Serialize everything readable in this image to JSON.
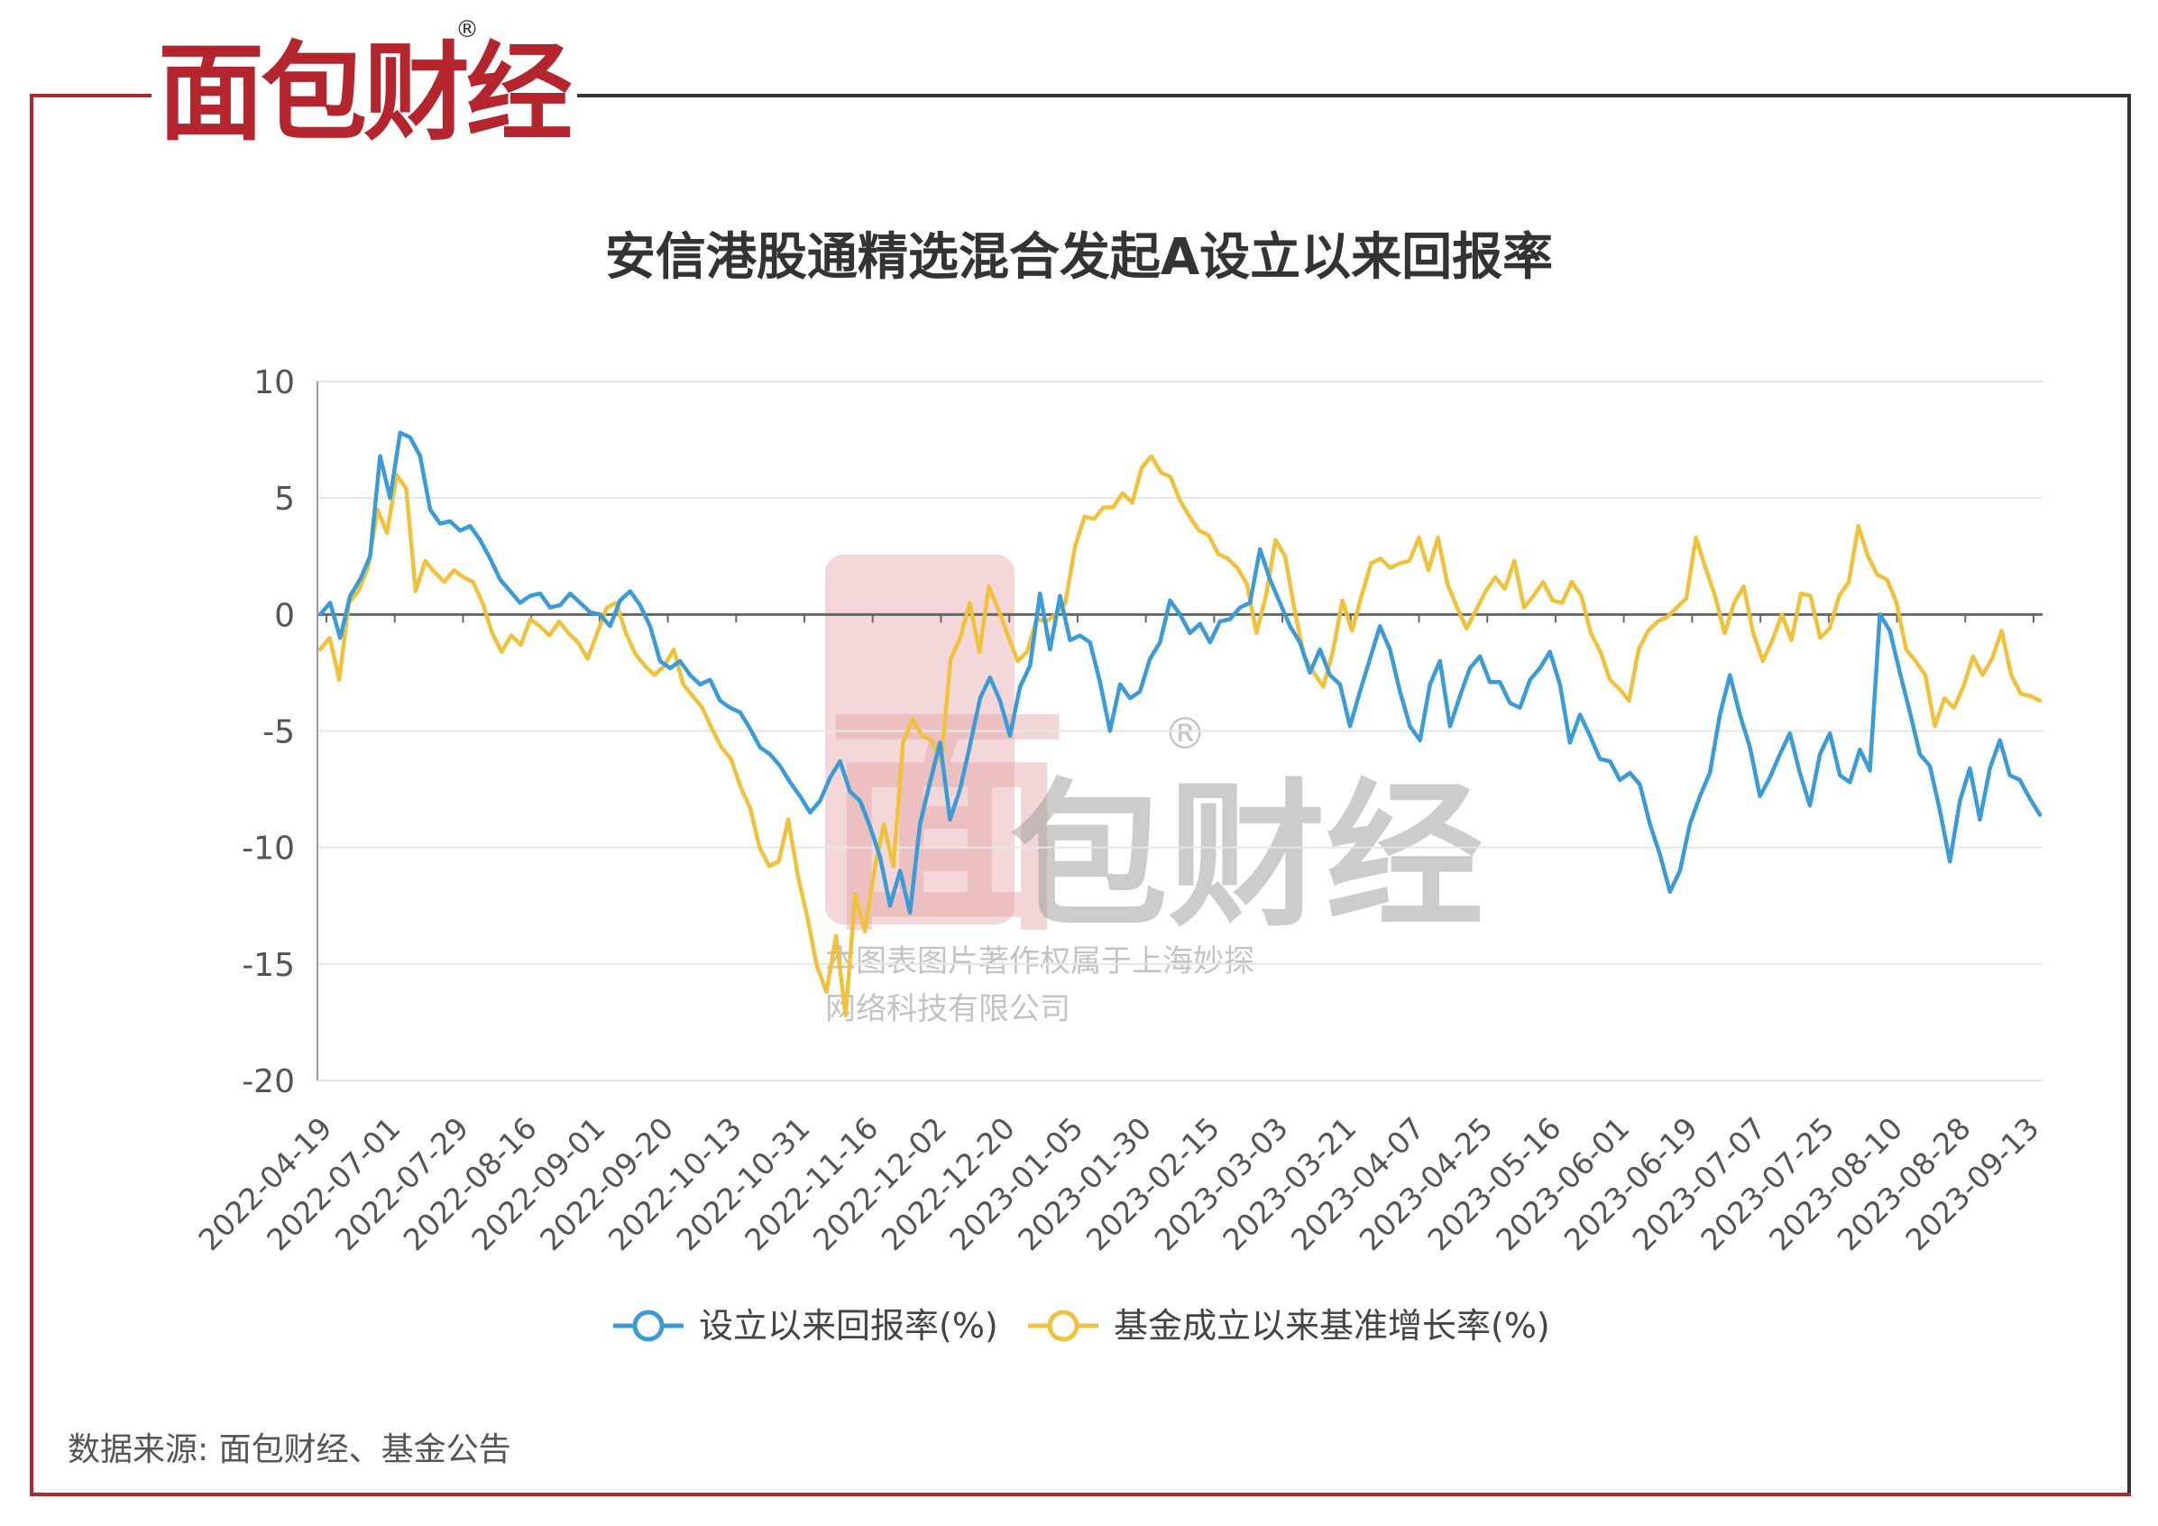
{
  "brand": {
    "logo_text": "面包财经",
    "registered_mark": "®"
  },
  "chart_data": {
    "type": "line",
    "title": "安信港股通精选混合发起A设立以来回报率",
    "xlabel": "",
    "ylabel": "",
    "ylim": [
      -20,
      10
    ],
    "yticks": [
      10,
      5,
      0,
      -5,
      -10,
      -15,
      -20
    ],
    "x_tick_labels": [
      "2022-04-19",
      "2022-07-01",
      "2022-07-29",
      "2022-08-16",
      "2022-09-01",
      "2022-09-20",
      "2022-10-13",
      "2022-10-31",
      "2022-11-16",
      "2022-12-02",
      "2022-12-20",
      "2023-01-05",
      "2023-01-30",
      "2023-02-15",
      "2023-03-03",
      "2023-03-21",
      "2023-04-07",
      "2023-04-25",
      "2023-05-16",
      "2023-06-01",
      "2023-06-19",
      "2023-07-07",
      "2023-07-25",
      "2023-08-10",
      "2023-08-28",
      "2023-09-13"
    ],
    "grid": true,
    "legend_position": "bottom",
    "series": [
      {
        "name": "设立以来回报率(%)",
        "color": "#3a9bd6",
        "values": [
          0,
          0.5,
          -1,
          0.8,
          1.5,
          2.5,
          6.8,
          5.0,
          7.8,
          7.6,
          6.8,
          4.5,
          3.9,
          4.0,
          3.6,
          3.8,
          3.2,
          2.4,
          1.5,
          1.0,
          0.5,
          0.8,
          0.9,
          0.3,
          0.4,
          0.9,
          0.5,
          0.1,
          0,
          -0.5,
          0.6,
          1.0,
          0.4,
          -0.5,
          -2.0,
          -2.3,
          -2.0,
          -2.6,
          -3.0,
          -2.8,
          -3.7,
          -4.0,
          -4.2,
          -4.9,
          -5.7,
          -6.0,
          -6.5,
          -7.2,
          -7.8,
          -8.5,
          -8.0,
          -7.0,
          -6.3,
          -7.6,
          -8.0,
          -9.1,
          -10.4,
          -12.5,
          -11.0,
          -12.8,
          -9.0,
          -7.2,
          -5.5,
          -8.8,
          -7.5,
          -5.6,
          -3.6,
          -2.7,
          -3.7,
          -5.2,
          -3.1,
          -2.2,
          0.9,
          -1.5,
          0.8,
          -1.1,
          -0.9,
          -1.2,
          -2.9,
          -5.0,
          -3.0,
          -3.6,
          -3.3,
          -1.9,
          -1.2,
          0.6,
          0,
          -0.8,
          -0.4,
          -1.2,
          -0.3,
          -0.2,
          0.3,
          0.5,
          2.8,
          1.5,
          0.5,
          -0.5,
          -1.2,
          -2.5,
          -1.5,
          -2.6,
          -3.0,
          -4.8,
          -3.3,
          -1.9,
          -0.5,
          -1.5,
          -3.3,
          -4.8,
          -5.4,
          -3.0,
          -2.0,
          -4.8,
          -3.5,
          -2.3,
          -1.8,
          -2.9,
          -2.9,
          -3.8,
          -4.0,
          -2.8,
          -2.3,
          -1.6,
          -3.0,
          -5.5,
          -4.3,
          -5.2,
          -6.2,
          -6.3,
          -7.1,
          -6.8,
          -7.3,
          -9.0,
          -10.3,
          -11.9,
          -11.0,
          -9.0,
          -7.8,
          -6.8,
          -4.3,
          -2.6,
          -4.3,
          -5.7,
          -7.8,
          -7.0,
          -6.0,
          -5.1,
          -6.8,
          -8.2,
          -6.0,
          -5.1,
          -6.9,
          -7.2,
          -5.8,
          -6.7,
          0,
          -0.7,
          -2.5,
          -4.2,
          -6.0,
          -6.5,
          -8.4,
          -10.6,
          -8.0,
          -6.6,
          -8.8,
          -6.6,
          -5.4,
          -6.9,
          -7.1,
          -7.9,
          -8.6
        ]
      },
      {
        "name": "基金成立以来基准增长率(%)",
        "color": "#f0c23c",
        "values": [
          -1.5,
          -1.0,
          -2.8,
          0.5,
          1.0,
          2.0,
          4.5,
          3.5,
          6.0,
          5.4,
          1.0,
          2.3,
          1.8,
          1.4,
          1.9,
          1.6,
          1.4,
          0.5,
          -0.8,
          -1.6,
          -0.9,
          -1.3,
          -0.2,
          -0.5,
          -0.9,
          -0.3,
          -0.8,
          -1.2,
          -1.9,
          -0.8,
          0.3,
          0.5,
          -0.8,
          -1.7,
          -2.2,
          -2.6,
          -2.2,
          -1.5,
          -3.0,
          -3.5,
          -4.0,
          -4.9,
          -5.7,
          -6.2,
          -7.4,
          -8.3,
          -10.0,
          -10.8,
          -10.6,
          -8.8,
          -11.2,
          -13.0,
          -15.1,
          -16.2,
          -13.8,
          -17.2,
          -12.0,
          -13.6,
          -11.0,
          -9.0,
          -10.8,
          -5.5,
          -4.5,
          -5.2,
          -5.4,
          -6.3,
          -1.9,
          -1.0,
          0.5,
          -1.6,
          1.2,
          0.2,
          -0.9,
          -2.0,
          -1.6,
          -0.2,
          -0.3,
          0,
          0.5,
          2.9,
          4.2,
          4.1,
          4.6,
          4.6,
          5.2,
          4.8,
          6.3,
          6.8,
          6.1,
          5.9,
          4.9,
          4.2,
          3.6,
          3.4,
          2.6,
          2.4,
          2.0,
          1.3,
          -0.8,
          0.8,
          3.2,
          2.5,
          0.2,
          -1.8,
          -2.5,
          -3.1,
          -1.6,
          0.6,
          -0.7,
          0.8,
          2.2,
          2.4,
          2.0,
          2.2,
          2.3,
          3.3,
          1.9,
          3.3,
          1.3,
          0.3,
          -0.6,
          0.2,
          1.0,
          1.6,
          1.1,
          2.3,
          0.3,
          0.8,
          1.4,
          0.6,
          0.5,
          1.4,
          0.8,
          -0.8,
          -1.6,
          -2.8,
          -3.2,
          -3.7,
          -1.5,
          -0.7,
          -0.3,
          -0.1,
          0.3,
          0.7,
          3.3,
          2.0,
          0.8,
          -0.8,
          0.5,
          1.2,
          -0.8,
          -2.0,
          -1.1,
          0,
          -1.1,
          0.9,
          0.8,
          -1.0,
          -0.6,
          0.8,
          1.4,
          3.8,
          2.5,
          1.7,
          1.5,
          0.5,
          -1.5,
          -2.0,
          -2.6,
          -4.8,
          -3.6,
          -4.0,
          -3.1,
          -1.8,
          -2.6,
          -1.9,
          -0.7,
          -2.6,
          -3.4,
          -3.5,
          -3.7
        ]
      }
    ]
  },
  "watermark": {
    "logo_text": "面包财经",
    "registered_mark": "®",
    "line1": "本图表图片著作权属于上海妙探",
    "line2": "网络科技有限公司"
  },
  "footer": {
    "source": "数据来源: 面包财经、基金公告"
  }
}
